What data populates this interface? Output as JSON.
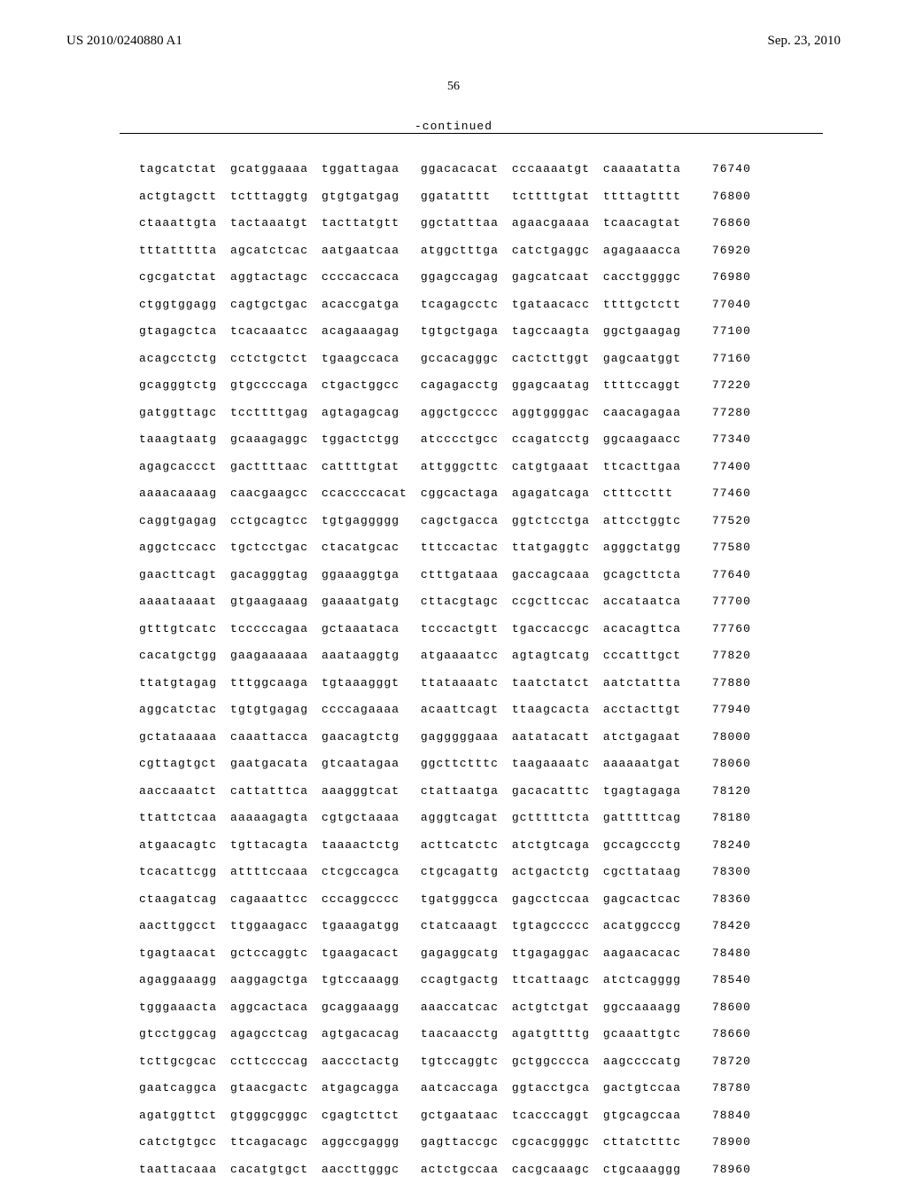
{
  "header": {
    "left": "US 2010/0240880 A1",
    "right": "Sep. 23, 2010"
  },
  "page_number": "56",
  "continued_label": "-continued",
  "sequence": {
    "rows": [
      {
        "groups": [
          "tagcatctat",
          "gcatggaaaa",
          "tggattagaa",
          "ggacacacat",
          "cccaaaatgt",
          "caaaatatta"
        ],
        "pos": "76740"
      },
      {
        "groups": [
          "actgtagctt",
          "tctttaggtg",
          "gtgtgatgag",
          "ggatatttt",
          "tcttttgtat",
          "ttttagtttt"
        ],
        "pos": "76800"
      },
      {
        "groups": [
          "ctaaattgta",
          "tactaaatgt",
          "tacttatgtt",
          "ggctatttaa",
          "agaacgaaaa",
          "tcaacagtat"
        ],
        "pos": "76860"
      },
      {
        "groups": [
          "tttattttta",
          "agcatctcac",
          "aatgaatcaa",
          "atggctttga",
          "catctgaggc",
          "agagaaacca"
        ],
        "pos": "76920"
      },
      {
        "groups": [
          "cgcgatctat",
          "aggtactagc",
          "ccccaccaca",
          "ggagccagag",
          "gagcatcaat",
          "cacctggggc"
        ],
        "pos": "76980"
      },
      {
        "groups": [
          "ctggtggagg",
          "cagtgctgac",
          "acaccgatga",
          "tcagagcctc",
          "tgataacacc",
          "ttttgctctt"
        ],
        "pos": "77040"
      },
      {
        "groups": [
          "gtagagctca",
          "tcacaaatcc",
          "acagaaagag",
          "tgtgctgaga",
          "tagccaagta",
          "ggctgaagag"
        ],
        "pos": "77100"
      },
      {
        "groups": [
          "acagcctctg",
          "cctctgctct",
          "tgaagccaca",
          "gccacagggc",
          "cactcttggt",
          "gagcaatggt"
        ],
        "pos": "77160"
      },
      {
        "groups": [
          "gcagggtctg",
          "gtgccccaga",
          "ctgactggcc",
          "cagagacctg",
          "ggagcaatag",
          "ttttccaggt"
        ],
        "pos": "77220"
      },
      {
        "groups": [
          "gatggttagc",
          "tccttttgag",
          "agtagagcag",
          "aggctgcccc",
          "aggtggggac",
          "caacagagaa"
        ],
        "pos": "77280"
      },
      {
        "groups": [
          "taaagtaatg",
          "gcaaagaggc",
          "tggactctgg",
          "atcccctgcc",
          "ccagatcctg",
          "ggcaagaacc"
        ],
        "pos": "77340"
      },
      {
        "groups": [
          "agagcaccct",
          "gacttttaac",
          "cattttgtat",
          "attgggcttc",
          "catgtgaaat",
          "ttcacttgaa"
        ],
        "pos": "77400"
      },
      {
        "groups": [
          "aaaacaaaag",
          "caacgaagcc",
          "ccaccccacat",
          "cggcactaga",
          "agagatcaga",
          "ctttccttt"
        ],
        "pos": "77460"
      },
      {
        "groups": [
          "caggtgagag",
          "cctgcagtcc",
          "tgtgaggggg",
          "cagctgacca",
          "ggtctcctga",
          "attcctggtc"
        ],
        "pos": "77520"
      },
      {
        "groups": [
          "aggctccacc",
          "tgctcctgac",
          "ctacatgcac",
          "tttccactac",
          "ttatgaggtc",
          "agggctatgg"
        ],
        "pos": "77580"
      },
      {
        "groups": [
          "gaacttcagt",
          "gacagggtag",
          "ggaaaggtga",
          "ctttgataaa",
          "gaccagcaaa",
          "gcagcttcta"
        ],
        "pos": "77640"
      },
      {
        "groups": [
          "aaaataaaat",
          "gtgaagaaag",
          "gaaaatgatg",
          "cttacgtagc",
          "ccgcttccac",
          "accataatca"
        ],
        "pos": "77700"
      },
      {
        "groups": [
          "gtttgtcatc",
          "tcccccagaa",
          "gctaaataca",
          "tcccactgtt",
          "tgaccaccgc",
          "acacagttca"
        ],
        "pos": "77760"
      },
      {
        "groups": [
          "cacatgctgg",
          "gaagaaaaaa",
          "aaataaggtg",
          "atgaaaatcc",
          "agtagtcatg",
          "cccatttgct"
        ],
        "pos": "77820"
      },
      {
        "groups": [
          "ttatgtagag",
          "tttggcaaga",
          "tgtaaagggt",
          "ttataaaatc",
          "taatctatct",
          "aatctattta"
        ],
        "pos": "77880"
      },
      {
        "groups": [
          "aggcatctac",
          "tgtgtgagag",
          "ccccagaaaa",
          "acaattcagt",
          "ttaagcacta",
          "acctacttgt"
        ],
        "pos": "77940"
      },
      {
        "groups": [
          "gctataaaaa",
          "caaattacca",
          "gaacagtctg",
          "gagggggaaa",
          "aatatacatt",
          "atctgagaat"
        ],
        "pos": "78000"
      },
      {
        "groups": [
          "cgttagtgct",
          "gaatgacata",
          "gtcaatagaa",
          "ggcttctttc",
          "taagaaaatc",
          "aaaaaatgat"
        ],
        "pos": "78060"
      },
      {
        "groups": [
          "aaccaaatct",
          "cattatttca",
          "aaagggtcat",
          "ctattaatga",
          "gacacatttc",
          "tgagtagaga"
        ],
        "pos": "78120"
      },
      {
        "groups": [
          "ttattctcaa",
          "aaaaagagta",
          "cgtgctaaaa",
          "agggtcagat",
          "gctttttcta",
          "gatttttcag"
        ],
        "pos": "78180"
      },
      {
        "groups": [
          "atgaacagtc",
          "tgttacagta",
          "taaaactctg",
          "acttcatctc",
          "atctgtcaga",
          "gccagccctg"
        ],
        "pos": "78240"
      },
      {
        "groups": [
          "tcacattcgg",
          "attttccaaa",
          "ctcgccagca",
          "ctgcagattg",
          "actgactctg",
          "cgcttataag"
        ],
        "pos": "78300"
      },
      {
        "groups": [
          "ctaagatcag",
          "cagaaattcc",
          "cccaggcccc",
          "tgatgggcca",
          "gagcctccaa",
          "gagcactcac"
        ],
        "pos": "78360"
      },
      {
        "groups": [
          "aacttggcct",
          "ttggaagacc",
          "tgaaagatgg",
          "ctatcaaagt",
          "tgtagccccc",
          "acatggcccg"
        ],
        "pos": "78420"
      },
      {
        "groups": [
          "tgagtaacat",
          "gctccaggtc",
          "tgaagacact",
          "gagaggcatg",
          "ttgagaggac",
          "aagaacacac"
        ],
        "pos": "78480"
      },
      {
        "groups": [
          "agaggaaagg",
          "aaggagctga",
          "tgtccaaagg",
          "ccagtgactg",
          "ttcattaagc",
          "atctcagggg"
        ],
        "pos": "78540"
      },
      {
        "groups": [
          "tgggaaacta",
          "aggcactaca",
          "gcaggaaagg",
          "aaaccatcac",
          "actgtctgat",
          "ggccaaaagg"
        ],
        "pos": "78600"
      },
      {
        "groups": [
          "gtcctggcag",
          "agagcctcag",
          "agtgacacag",
          "taacaacctg",
          "agatgttttg",
          "gcaaattgtc"
        ],
        "pos": "78660"
      },
      {
        "groups": [
          "tcttgcgcac",
          "ccttccccag",
          "aaccctactg",
          "tgtccaggtc",
          "gctggcccca",
          "aagccccatg"
        ],
        "pos": "78720"
      },
      {
        "groups": [
          "gaatcaggca",
          "gtaacgactc",
          "atgagcagga",
          "aatcaccaga",
          "ggtacctgca",
          "gactgtccaa"
        ],
        "pos": "78780"
      },
      {
        "groups": [
          "agatggttct",
          "gtgggcgggc",
          "cgagtcttct",
          "gctgaataac",
          "tcacccaggt",
          "gtgcagccaa"
        ],
        "pos": "78840"
      },
      {
        "groups": [
          "catctgtgcc",
          "ttcagacagc",
          "aggccgaggg",
          "gagttaccgc",
          "cgcacggggc",
          "cttatctttc"
        ],
        "pos": "78900"
      },
      {
        "groups": [
          "taattacaaa",
          "cacatgtgct",
          "aaccttgggc",
          "actctgccaa",
          "cacgcaaagc",
          "ctgcaaaggg"
        ],
        "pos": "78960"
      }
    ]
  }
}
